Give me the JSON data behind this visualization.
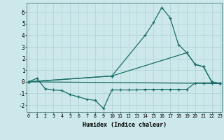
{
  "xlabel": "Humidex (Indice chaleur)",
  "bg_color": "#cce8ea",
  "grid_color": "#b0d0d4",
  "line_color": "#1a6e6a",
  "series": [
    {
      "x": [
        0,
        1,
        2,
        3,
        4,
        5,
        6,
        7,
        8,
        9,
        10,
        11,
        12,
        13,
        14,
        15,
        16,
        17,
        18,
        19,
        20,
        21,
        22,
        23
      ],
      "y": [
        0.0,
        0.3,
        -0.6,
        -0.7,
        -0.75,
        -1.1,
        -1.3,
        -1.5,
        -1.6,
        -2.3,
        -0.7,
        -0.7,
        -0.7,
        -0.7,
        -0.65,
        -0.65,
        -0.65,
        -0.65,
        -0.65,
        -0.65,
        -0.1,
        -0.1,
        -0.1,
        -0.15
      ]
    },
    {
      "x": [
        0,
        10,
        14,
        15,
        16,
        17,
        18,
        19,
        20,
        21,
        22,
        23
      ],
      "y": [
        0.0,
        0.5,
        4.0,
        5.1,
        6.4,
        5.5,
        3.2,
        2.5,
        1.5,
        1.3,
        0.0,
        -0.15
      ]
    },
    {
      "x": [
        0,
        10,
        19,
        20,
        21,
        22,
        23
      ],
      "y": [
        0.0,
        0.5,
        2.5,
        1.5,
        1.3,
        0.0,
        -0.15
      ]
    },
    {
      "x": [
        0,
        23
      ],
      "y": [
        0.0,
        -0.15
      ]
    }
  ],
  "xlim": [
    -0.2,
    23.2
  ],
  "ylim": [
    -2.6,
    6.8
  ],
  "yticks": [
    -2,
    -1,
    0,
    1,
    2,
    3,
    4,
    5,
    6
  ],
  "xticks": [
    0,
    1,
    2,
    3,
    4,
    5,
    6,
    7,
    8,
    9,
    10,
    11,
    12,
    13,
    14,
    15,
    16,
    17,
    18,
    19,
    20,
    21,
    22,
    23
  ]
}
